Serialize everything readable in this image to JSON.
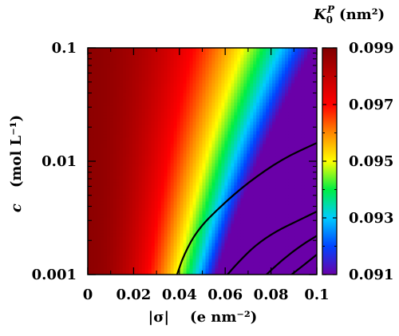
{
  "chart_data": {
    "type": "heatmap",
    "title": "K₀ᴾ (nm²)",
    "title_main": "K",
    "title_sub": "0",
    "title_sup": "P",
    "title_unit": "(nm²)",
    "xlabel": "|σ|    (e nm⁻²)",
    "xlabel_main": "|σ|",
    "xlabel_unit": "(e nm⁻²)",
    "ylabel": "c   (mol L⁻¹)",
    "ylabel_main": "c",
    "ylabel_unit": "(mol L⁻¹)",
    "x_range": [
      0,
      0.1
    ],
    "y_range": [
      0.001,
      0.1
    ],
    "y_scale": "log",
    "x_ticks": [
      "0",
      "0.02",
      "0.04",
      "0.06",
      "0.08",
      "0.1"
    ],
    "x_tick_values": [
      0,
      0.02,
      0.04,
      0.06,
      0.08,
      0.1
    ],
    "y_ticks": [
      "0.001",
      "0.01",
      "0.1"
    ],
    "y_tick_values": [
      0.001,
      0.01,
      0.1
    ],
    "colorbar": {
      "range": [
        0.091,
        0.099
      ],
      "ticks": [
        "0.091",
        "0.093",
        "0.095",
        "0.097",
        "0.099"
      ],
      "tick_values": [
        0.091,
        0.093,
        0.095,
        0.097,
        0.099
      ],
      "colormap": [
        "#6a00a8",
        "#0044ff",
        "#00ccff",
        "#00ee44",
        "#ffff00",
        "#ff8800",
        "#ff0000",
        "#c00000",
        "#800000"
      ]
    },
    "contours": [
      {
        "level": 0.097,
        "points": [
          [
            0.039,
            0.001
          ],
          [
            0.042,
            0.0015
          ],
          [
            0.048,
            0.0025
          ],
          [
            0.058,
            0.004
          ],
          [
            0.07,
            0.0065
          ],
          [
            0.085,
            0.0105
          ],
          [
            0.1,
            0.0145
          ]
        ]
      },
      {
        "level": 0.095,
        "points": [
          [
            0.061,
            0.001
          ],
          [
            0.066,
            0.0013
          ],
          [
            0.073,
            0.0018
          ],
          [
            0.082,
            0.0024
          ],
          [
            0.092,
            0.003
          ],
          [
            0.1,
            0.0036
          ]
        ]
      },
      {
        "level": 0.093,
        "points": [
          [
            0.078,
            0.001
          ],
          [
            0.085,
            0.00135
          ],
          [
            0.093,
            0.0018
          ],
          [
            0.1,
            0.0022
          ]
        ]
      },
      {
        "level": 0.091,
        "points": [
          [
            0.089,
            0.001
          ],
          [
            0.094,
            0.0012
          ],
          [
            0.1,
            0.0015
          ]
        ]
      }
    ],
    "grid": false,
    "legend": "colorbar-right"
  }
}
